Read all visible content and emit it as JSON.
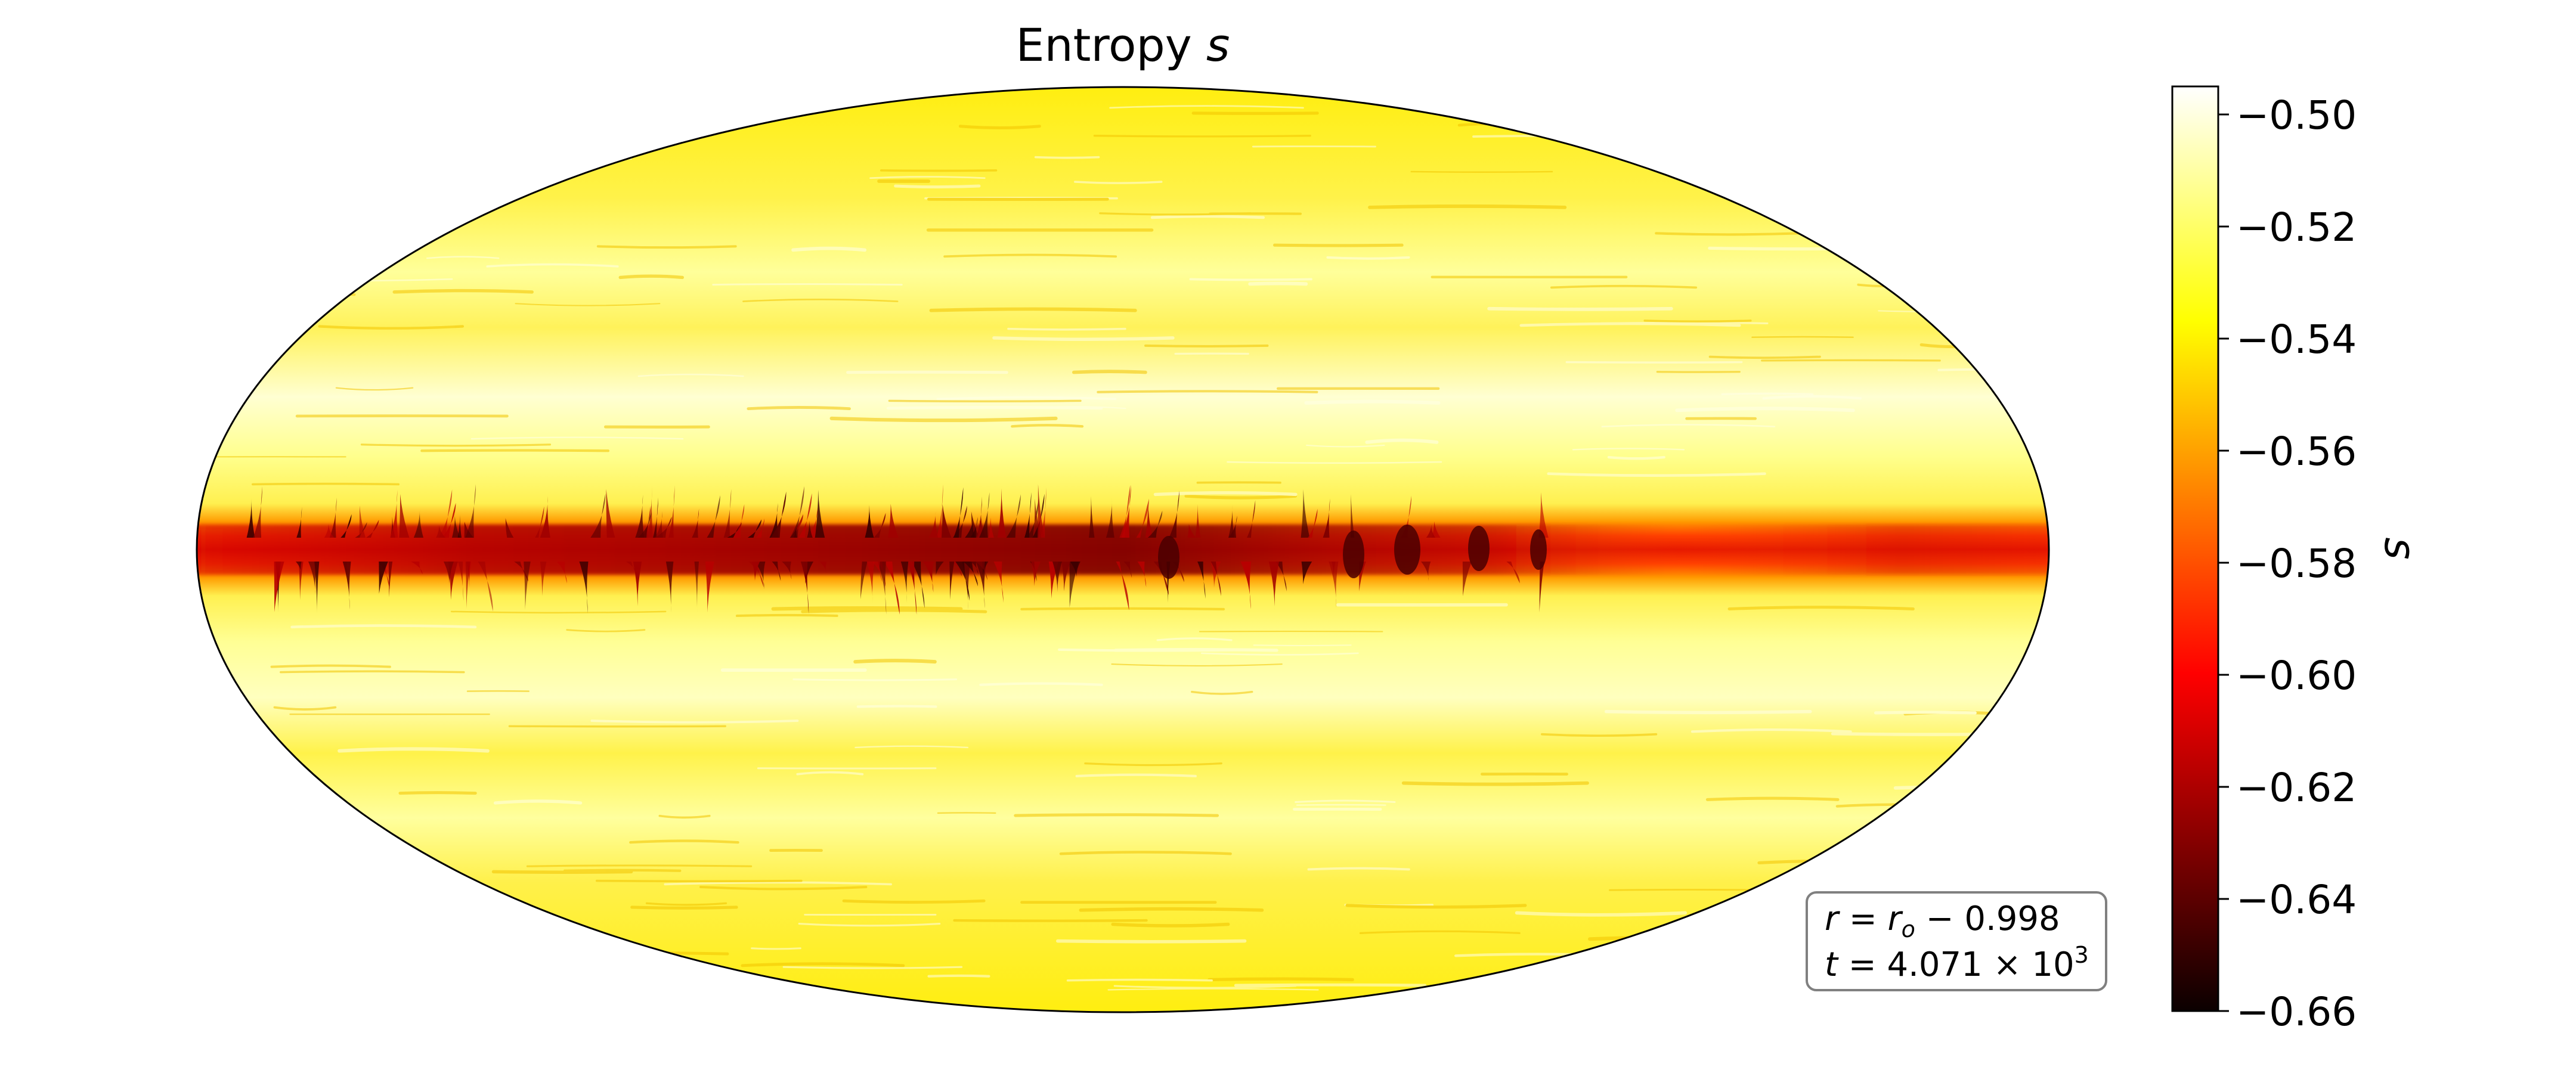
{
  "chart_data": {
    "type": "heatmap",
    "projection": "mollweide",
    "title": "Entropy",
    "title_symbol": "s",
    "colormap": "hot",
    "colorbar": {
      "label": "s",
      "vmin": -0.66,
      "vmax": -0.495,
      "ticks": [
        -0.5,
        -0.52,
        -0.54,
        -0.56,
        -0.58,
        -0.6,
        -0.62,
        -0.64,
        -0.66
      ],
      "tick_labels": [
        "−0.50",
        "−0.52",
        "−0.54",
        "−0.56",
        "−0.58",
        "−0.60",
        "−0.62",
        "−0.64",
        "−0.66"
      ]
    },
    "annotation": {
      "line1": "r = r_o −  0.998",
      "line2": "t = 4.071 × 10^3"
    },
    "field": {
      "background_value": -0.535,
      "equatorial_band_value": -0.585,
      "darkest_feature_value": -0.655,
      "light_bands_lat_deg": [
        35,
        48,
        -20,
        -38
      ],
      "light_band_value": -0.51
    }
  }
}
